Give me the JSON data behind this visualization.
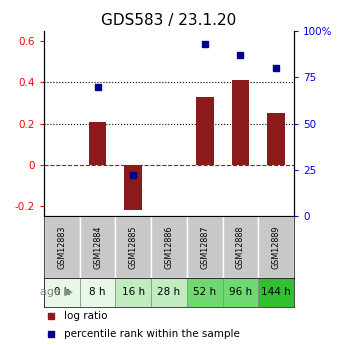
{
  "title": "GDS583 / 23.1.20",
  "samples": [
    "GSM12883",
    "GSM12884",
    "GSM12885",
    "GSM12886",
    "GSM12887",
    "GSM12888",
    "GSM12889"
  ],
  "ages": [
    "0 h",
    "8 h",
    "16 h",
    "28 h",
    "52 h",
    "96 h",
    "144 h"
  ],
  "log_ratio": [
    0.0,
    0.207,
    -0.22,
    0.0,
    0.33,
    0.41,
    0.25
  ],
  "percentile_pct": [
    null,
    70,
    22,
    null,
    93,
    87,
    80
  ],
  "ylim_left": [
    -0.25,
    0.65
  ],
  "left_ticks": [
    -0.2,
    0,
    0.2,
    0.4,
    0.6
  ],
  "right_ticks": [
    0,
    25,
    50,
    75,
    100
  ],
  "bar_color": "#8B1A1A",
  "dot_color": "#00008B",
  "sample_bg": "#c8c8c8",
  "age_bg_colors": [
    "#e8f8e8",
    "#e8f8e8",
    "#c0ecc0",
    "#c0ecc0",
    "#70d870",
    "#70d870",
    "#30c030"
  ],
  "title_fontsize": 11,
  "bar_width": 0.5,
  "dot_size": 5
}
